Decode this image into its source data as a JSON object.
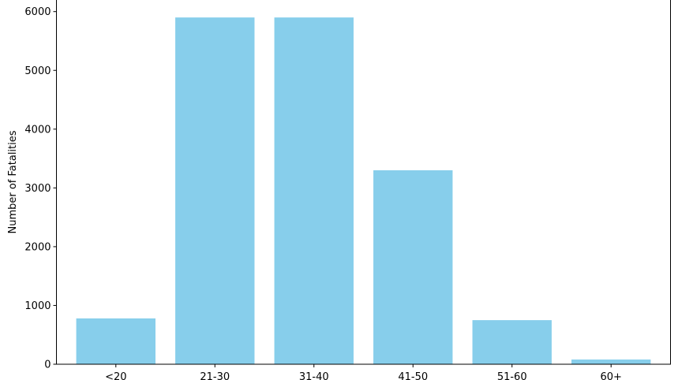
{
  "chart_data": {
    "type": "bar",
    "categories": [
      "<20",
      "21-30",
      "31-40",
      "41-50",
      "51-60",
      "60+"
    ],
    "values": [
      780,
      5900,
      5900,
      3300,
      750,
      80
    ],
    "title": "",
    "xlabel": "",
    "ylabel": "Number of Fatalities",
    "ylim": [
      0,
      6000
    ],
    "yticks": [
      0,
      1000,
      2000,
      3000,
      4000,
      5000,
      6000
    ],
    "grid": false,
    "bar_color": "#87CEEB"
  }
}
